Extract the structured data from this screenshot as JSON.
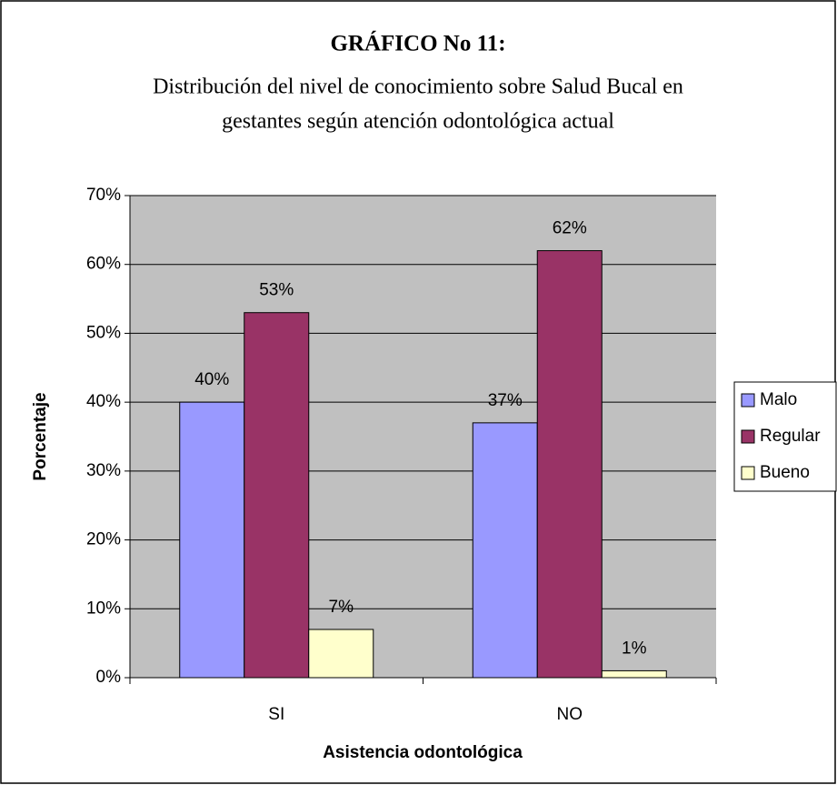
{
  "chart_data": {
    "type": "bar",
    "title": "GRÁFICO No 11:",
    "subtitle": [
      "Distribución del nivel de conocimiento sobre Salud Bucal en",
      "gestantes según atención odontológica actual"
    ],
    "x_label": "Asistencia odontológica",
    "y_label": "Porcentaje",
    "categories": [
      "SI",
      "NO"
    ],
    "series": [
      {
        "name": "Malo",
        "color": "#9999ff",
        "values": [
          40,
          37
        ],
        "value_labels": [
          "40%",
          "37%"
        ]
      },
      {
        "name": "Regular",
        "color": "#993366",
        "values": [
          53,
          62
        ],
        "value_labels": [
          "53%",
          "62%"
        ]
      },
      {
        "name": "Bueno",
        "color": "#ffffcc",
        "values": [
          7,
          1
        ],
        "value_labels": [
          "7%",
          "1%"
        ]
      }
    ],
    "ylim": [
      0,
      70
    ],
    "yticks": [
      {
        "value": 0,
        "label": "0%"
      },
      {
        "value": 10,
        "label": "10%"
      },
      {
        "value": 20,
        "label": "20%"
      },
      {
        "value": 30,
        "label": "30%"
      },
      {
        "value": 40,
        "label": "40%"
      },
      {
        "value": 50,
        "label": "50%"
      },
      {
        "value": 60,
        "label": "60%"
      },
      {
        "value": 70,
        "label": "70%"
      }
    ],
    "grid": true,
    "legend": "right"
  }
}
